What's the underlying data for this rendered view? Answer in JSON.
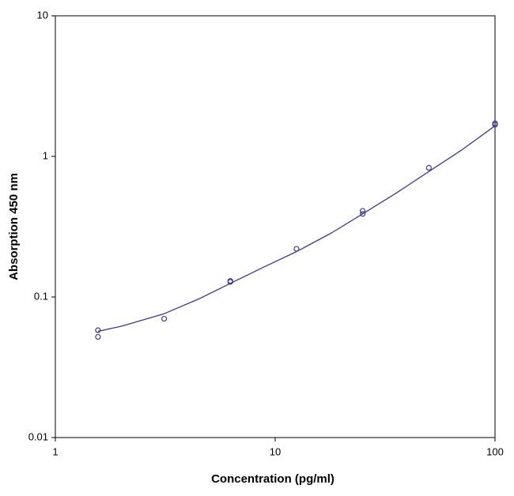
{
  "chart_data": {
    "type": "scatter",
    "xlabel": "Concentration (pg/ml)",
    "ylabel": "Absorption 450 nm",
    "xscale": "log",
    "yscale": "log",
    "xlim": [
      1,
      100
    ],
    "xticks": [
      1,
      10,
      100
    ],
    "ylim": [
      0.01,
      10
    ],
    "yticks": [
      0.01,
      0.1,
      1,
      10
    ],
    "series": [
      {
        "kind": "points",
        "color": "#3a3a90",
        "x": [
          1.5625,
          1.5625,
          3.125,
          6.25,
          6.25,
          12.5,
          25,
          25,
          50,
          100,
          100
        ],
        "values": [
          0.058,
          0.052,
          0.07,
          0.13,
          0.128,
          0.22,
          0.41,
          0.39,
          0.83,
          1.72,
          1.68
        ]
      },
      {
        "kind": "curve",
        "color": "#3a3a90",
        "x": [
          1.5625,
          2,
          3.125,
          4.5,
          6.25,
          9,
          12.5,
          18,
          25,
          35,
          50,
          70,
          100
        ],
        "values": [
          0.057,
          0.062,
          0.076,
          0.097,
          0.125,
          0.165,
          0.21,
          0.285,
          0.39,
          0.54,
          0.78,
          1.1,
          1.65
        ]
      }
    ]
  }
}
